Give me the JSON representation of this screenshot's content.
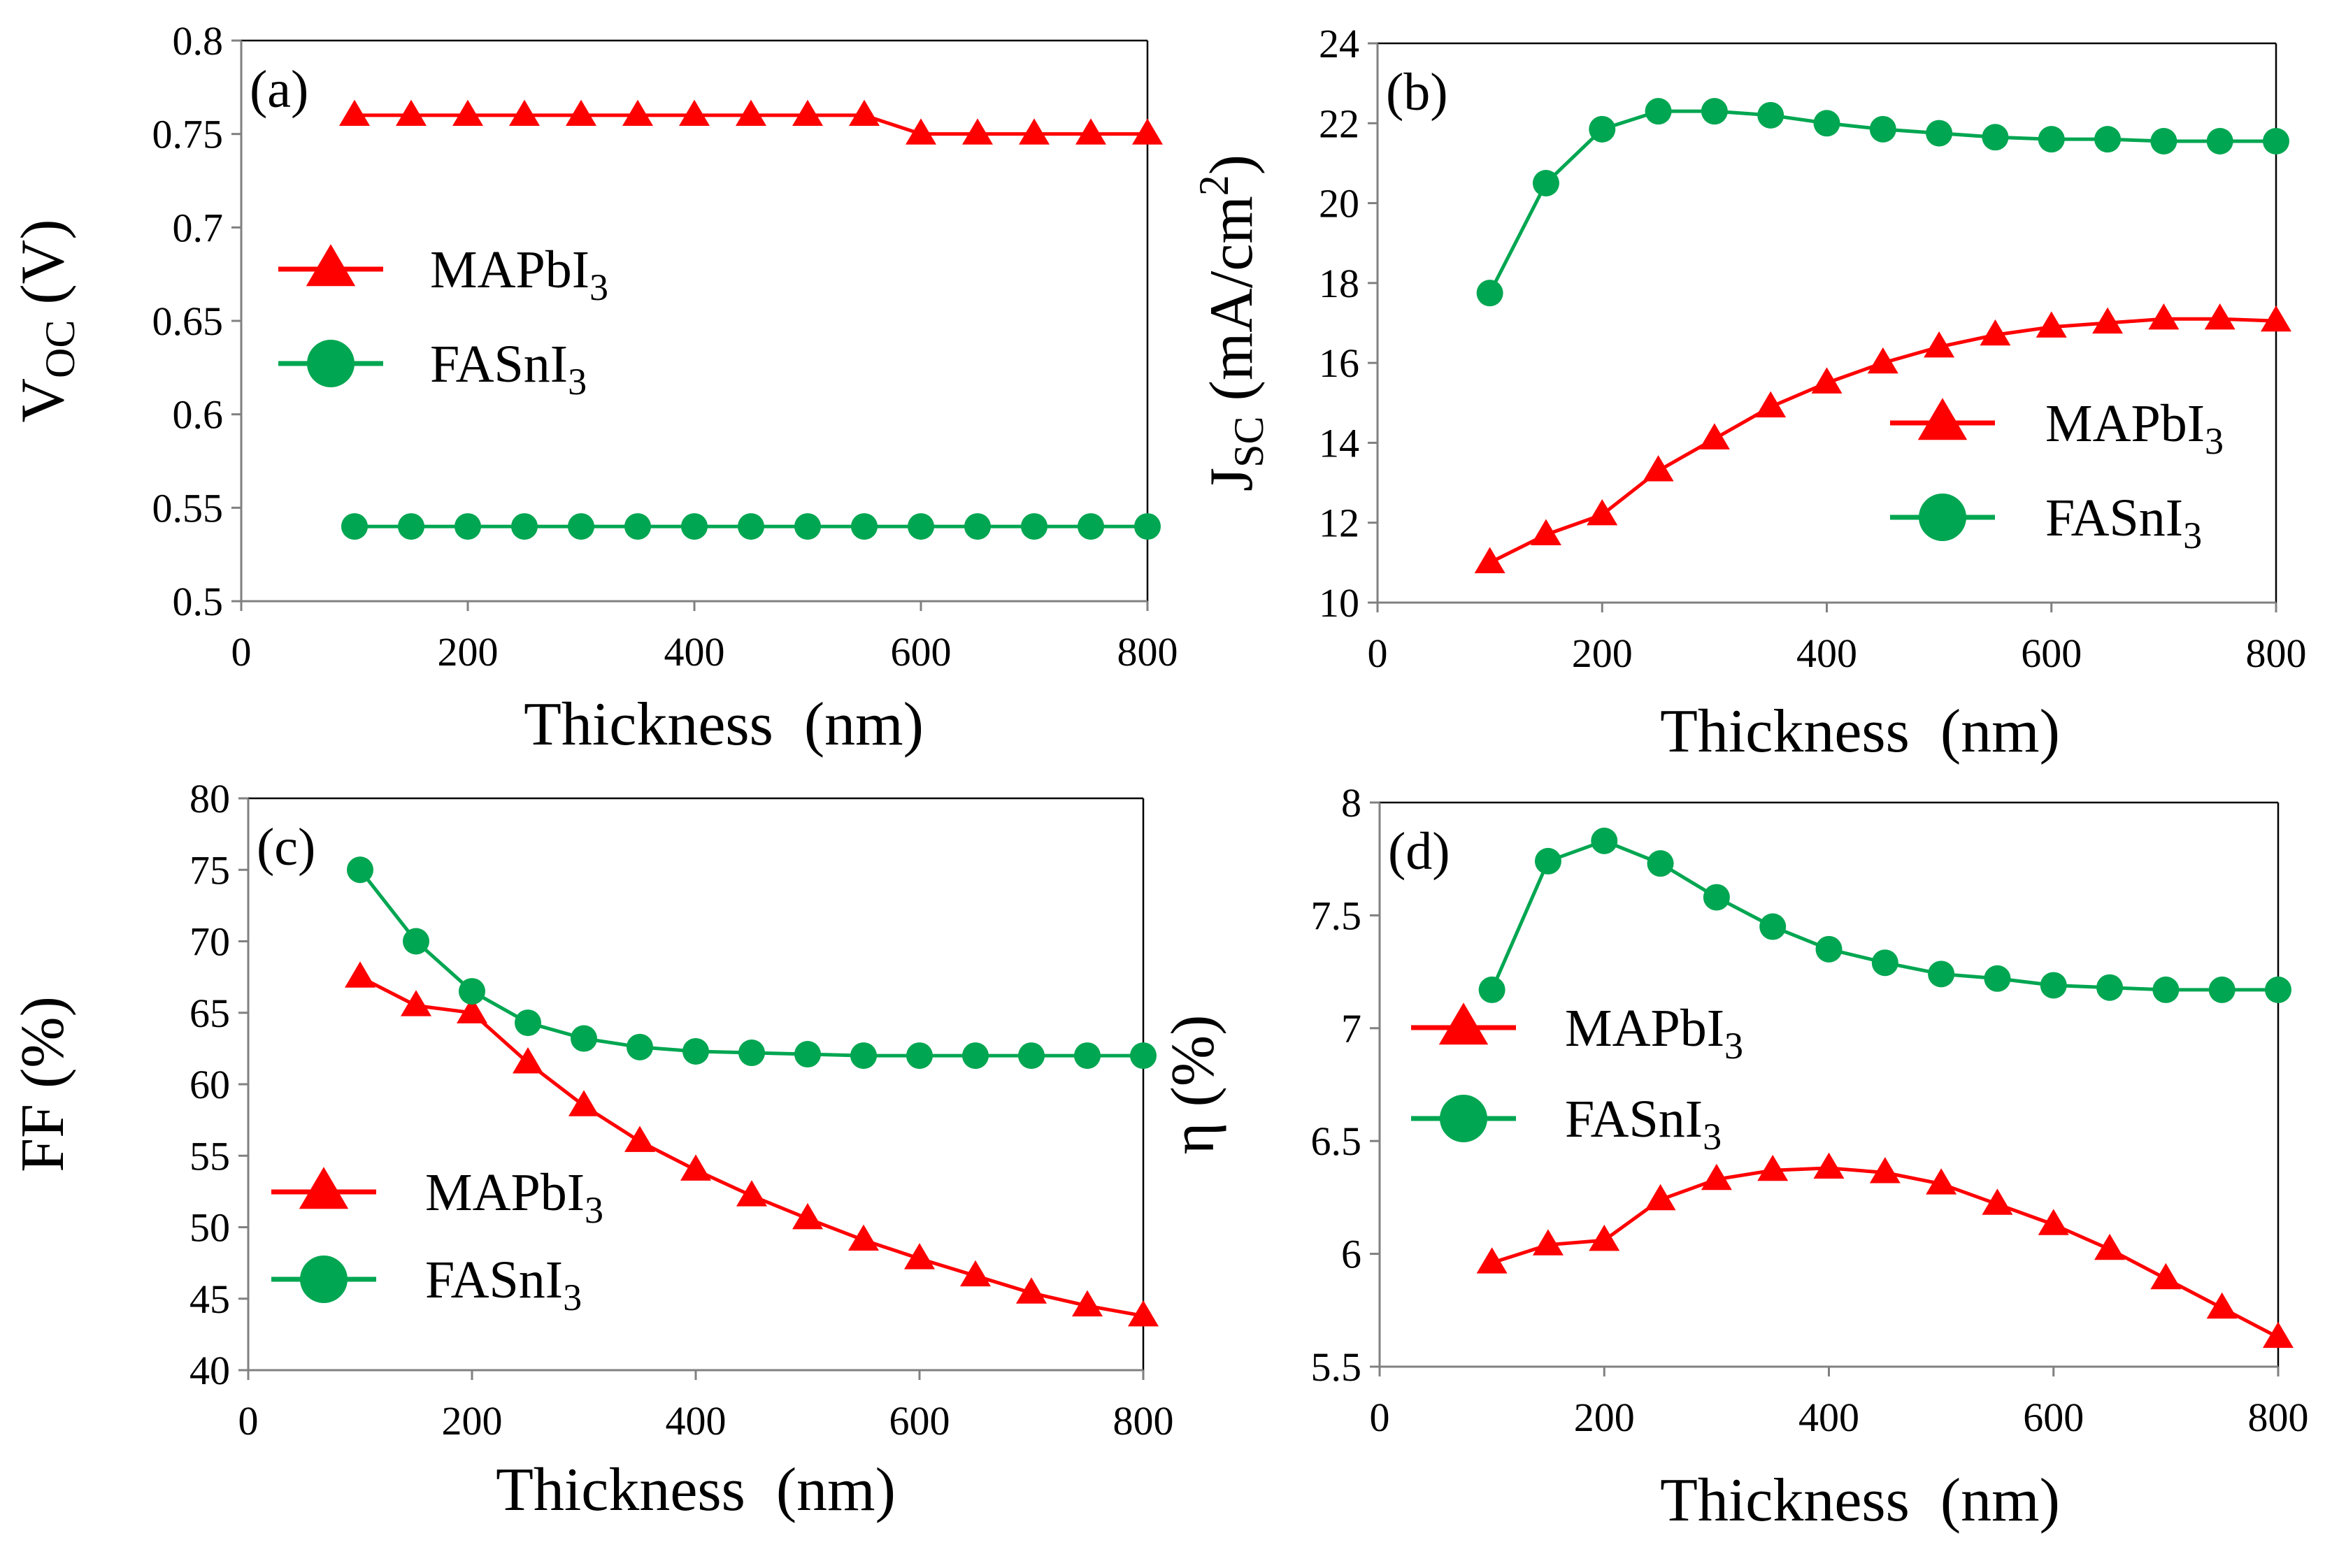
{
  "colors": {
    "mapbi": "#ff0000",
    "fasni": "#00a651",
    "axis": "#808080",
    "frame": "#000000"
  },
  "legend": {
    "mapbi": {
      "main": "MAPbI",
      "sub": "3"
    },
    "fasni": {
      "main": "FASnI",
      "sub": "3"
    }
  },
  "chart_data": [
    {
      "id": "a",
      "type": "line",
      "label": "(a)",
      "ylabel": {
        "main": "V",
        "sub": "OC",
        "rest": " (V)"
      },
      "xlabel": "Thickness  (nm)",
      "xlim": [
        0,
        800
      ],
      "ylim": [
        0.5,
        0.8
      ],
      "xticks": [
        0,
        200,
        400,
        600,
        800
      ],
      "xtick_labels": [
        "0",
        "200",
        "400",
        "600",
        "800"
      ],
      "yticks": [
        0.5,
        0.55,
        0.6,
        0.65,
        0.7,
        0.75,
        0.8
      ],
      "ytick_labels": [
        "0.5",
        "0.55",
        "0.6",
        "0.65",
        "0.7",
        "0.75",
        "0.8"
      ],
      "legend_position": "left-middle",
      "x": [
        100,
        150,
        200,
        250,
        300,
        350,
        400,
        450,
        500,
        550,
        600,
        650,
        700,
        750,
        800
      ],
      "series": [
        {
          "name": "MAPbI3",
          "marker": "triangle",
          "values": [
            0.76,
            0.76,
            0.76,
            0.76,
            0.76,
            0.76,
            0.76,
            0.76,
            0.76,
            0.76,
            0.75,
            0.75,
            0.75,
            0.75,
            0.75
          ]
        },
        {
          "name": "FASnI3",
          "marker": "circle",
          "values": [
            0.54,
            0.54,
            0.54,
            0.54,
            0.54,
            0.54,
            0.54,
            0.54,
            0.54,
            0.54,
            0.54,
            0.54,
            0.54,
            0.54,
            0.54
          ]
        }
      ]
    },
    {
      "id": "b",
      "type": "line",
      "label": "(b)",
      "ylabel": {
        "main": "J",
        "sub": "SC",
        "rest": " (mA/cm",
        "sup": "2",
        "end": ")"
      },
      "xlabel": "Thickness  (nm)",
      "xlim": [
        0,
        800
      ],
      "ylim": [
        10,
        24
      ],
      "xticks": [
        0,
        200,
        400,
        600,
        800
      ],
      "xtick_labels": [
        "0",
        "200",
        "400",
        "600",
        "800"
      ],
      "yticks": [
        10,
        12,
        14,
        16,
        18,
        20,
        22,
        24
      ],
      "ytick_labels": [
        "10",
        "12",
        "14",
        "16",
        "18",
        "20",
        "22",
        "24"
      ],
      "legend_position": "right-lower",
      "x": [
        100,
        150,
        200,
        250,
        300,
        350,
        400,
        450,
        500,
        550,
        600,
        650,
        700,
        750,
        800
      ],
      "series": [
        {
          "name": "MAPbI3",
          "marker": "triangle",
          "values": [
            11.0,
            11.7,
            12.2,
            13.3,
            14.1,
            14.9,
            15.5,
            16.0,
            16.4,
            16.7,
            16.9,
            17.0,
            17.1,
            17.1,
            17.05
          ]
        },
        {
          "name": "FASnI3",
          "marker": "circle",
          "values": [
            17.75,
            20.5,
            21.85,
            22.3,
            22.3,
            22.2,
            22.0,
            21.85,
            21.75,
            21.65,
            21.6,
            21.6,
            21.55,
            21.55,
            21.55
          ]
        }
      ]
    },
    {
      "id": "c",
      "type": "line",
      "label": "(c)",
      "ylabel": {
        "main": "FF (%)"
      },
      "xlabel": "Thickness  (nm)",
      "xlim": [
        0,
        800
      ],
      "ylim": [
        40,
        80
      ],
      "xticks": [
        0,
        200,
        400,
        600,
        800
      ],
      "xtick_labels": [
        "0",
        "200",
        "400",
        "600",
        "800"
      ],
      "yticks": [
        40,
        45,
        50,
        55,
        60,
        65,
        70,
        75,
        80
      ],
      "ytick_labels": [
        "40",
        "45",
        "50",
        "55",
        "60",
        "65",
        "70",
        "75",
        "80"
      ],
      "legend_position": "left-lower",
      "x": [
        100,
        150,
        200,
        250,
        300,
        350,
        400,
        450,
        500,
        550,
        600,
        650,
        700,
        750,
        800
      ],
      "series": [
        {
          "name": "MAPbI3",
          "marker": "triangle",
          "values": [
            67.5,
            65.5,
            65.0,
            61.5,
            58.5,
            56.0,
            54.0,
            52.2,
            50.6,
            49.1,
            47.8,
            46.6,
            45.4,
            44.5,
            43.8
          ]
        },
        {
          "name": "FASnI3",
          "marker": "circle",
          "values": [
            75.0,
            70.0,
            66.5,
            64.3,
            63.2,
            62.6,
            62.3,
            62.2,
            62.1,
            62.0,
            62.0,
            62.0,
            62.0,
            62.0,
            62.0
          ]
        }
      ]
    },
    {
      "id": "d",
      "type": "line",
      "label": "(d)",
      "ylabel": {
        "main": "η (%)"
      },
      "xlabel": "Thickness  (nm)",
      "xlim": [
        0,
        800
      ],
      "ylim": [
        5.5,
        8
      ],
      "xticks": [
        0,
        200,
        400,
        600,
        800
      ],
      "xtick_labels": [
        "0",
        "200",
        "400",
        "600",
        "800"
      ],
      "yticks": [
        5.5,
        6,
        6.5,
        7,
        7.5,
        8
      ],
      "ytick_labels": [
        "5.5",
        "6",
        "6.5",
        "7",
        "7.5",
        "8"
      ],
      "legend_position": "left-middle",
      "x": [
        100,
        150,
        200,
        250,
        300,
        350,
        400,
        450,
        500,
        550,
        600,
        650,
        700,
        750,
        800
      ],
      "series": [
        {
          "name": "MAPbI3",
          "marker": "triangle",
          "values": [
            5.96,
            6.04,
            6.06,
            6.24,
            6.33,
            6.37,
            6.38,
            6.36,
            6.31,
            6.22,
            6.13,
            6.02,
            5.89,
            5.76,
            5.63
          ]
        },
        {
          "name": "FASnI3",
          "marker": "circle",
          "values": [
            7.17,
            7.74,
            7.83,
            7.73,
            7.58,
            7.45,
            7.35,
            7.29,
            7.24,
            7.22,
            7.19,
            7.18,
            7.17,
            7.17,
            7.17
          ]
        }
      ]
    }
  ]
}
